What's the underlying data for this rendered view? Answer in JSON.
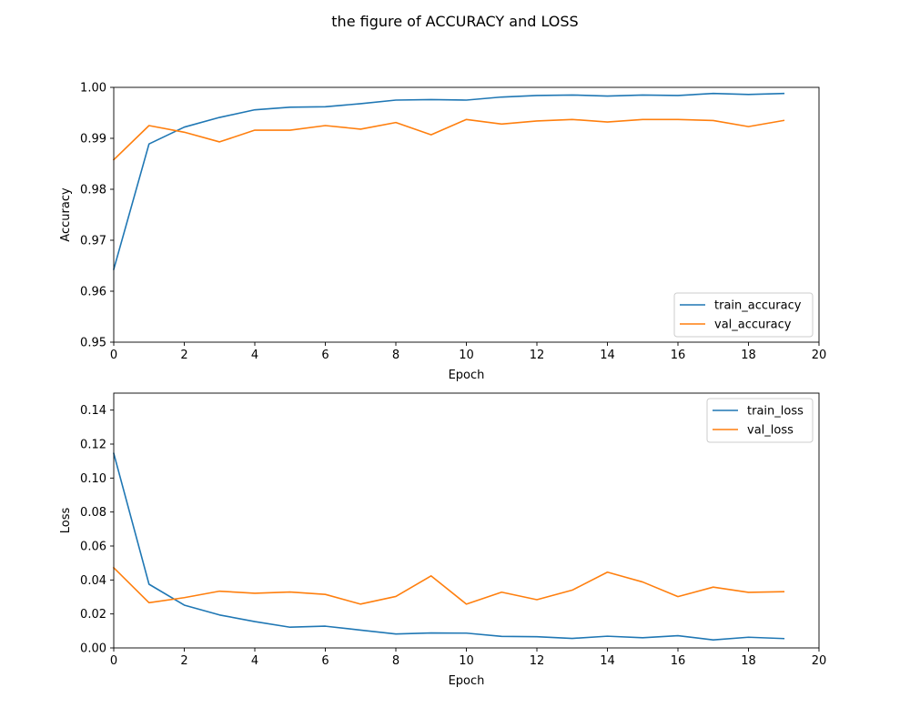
{
  "figure": {
    "title": "the figure of ACCURACY and LOSS"
  },
  "colors": {
    "train": "#1f77b4",
    "val": "#ff7f0e"
  },
  "chart_data": [
    {
      "type": "line",
      "xlabel": "Epoch",
      "ylabel": "Accuracy",
      "xlim": [
        0,
        20
      ],
      "ylim": [
        0.95,
        1.0
      ],
      "xticks": [
        0,
        2,
        4,
        6,
        8,
        10,
        12,
        14,
        16,
        18,
        20
      ],
      "yticks": [
        0.95,
        0.96,
        0.97,
        0.98,
        0.99,
        1.0
      ],
      "ytick_labels": [
        "0.95",
        "0.96",
        "0.97",
        "0.98",
        "0.99",
        "1.00"
      ],
      "grid": false,
      "legend": "lower-right",
      "x": [
        0,
        1,
        2,
        3,
        4,
        5,
        6,
        7,
        8,
        9,
        10,
        11,
        12,
        13,
        14,
        15,
        16,
        17,
        18,
        19
      ],
      "series": [
        {
          "name": "train_accuracy",
          "color": "#1f77b4",
          "values": [
            0.9643,
            0.9889,
            0.9922,
            0.9941,
            0.9956,
            0.9961,
            0.9962,
            0.9968,
            0.9975,
            0.9976,
            0.9975,
            0.9981,
            0.9984,
            0.9985,
            0.9983,
            0.9985,
            0.9984,
            0.9988,
            0.9986,
            0.9988
          ]
        },
        {
          "name": "val_accuracy",
          "color": "#ff7f0e",
          "values": [
            0.9858,
            0.9925,
            0.9912,
            0.9893,
            0.9916,
            0.9916,
            0.9925,
            0.9918,
            0.9931,
            0.9907,
            0.9937,
            0.9928,
            0.9934,
            0.9937,
            0.9932,
            0.9937,
            0.9937,
            0.9935,
            0.9923,
            0.9935
          ]
        }
      ]
    },
    {
      "type": "line",
      "xlabel": "Epoch",
      "ylabel": "Loss",
      "xlim": [
        0,
        20
      ],
      "ylim": [
        0.0,
        0.15
      ],
      "xticks": [
        0,
        2,
        4,
        6,
        8,
        10,
        12,
        14,
        16,
        18,
        20
      ],
      "yticks": [
        0.0,
        0.02,
        0.04,
        0.06,
        0.08,
        0.1,
        0.12,
        0.14
      ],
      "ytick_labels": [
        "0.00",
        "0.02",
        "0.04",
        "0.06",
        "0.08",
        "0.10",
        "0.12",
        "0.14"
      ],
      "grid": false,
      "legend": "upper-right",
      "x": [
        0,
        1,
        2,
        3,
        4,
        5,
        6,
        7,
        8,
        9,
        10,
        11,
        12,
        13,
        14,
        15,
        16,
        17,
        18,
        19
      ],
      "series": [
        {
          "name": "train_loss",
          "color": "#1f77b4",
          "values": [
            0.1145,
            0.0375,
            0.0252,
            0.0194,
            0.0155,
            0.0122,
            0.0128,
            0.0105,
            0.0082,
            0.0088,
            0.0087,
            0.0068,
            0.0066,
            0.0056,
            0.0069,
            0.006,
            0.0072,
            0.0047,
            0.0063,
            0.0055
          ]
        },
        {
          "name": "val_loss",
          "color": "#ff7f0e",
          "values": [
            0.0472,
            0.0266,
            0.0296,
            0.0334,
            0.0322,
            0.0329,
            0.0315,
            0.0258,
            0.0303,
            0.0424,
            0.0258,
            0.0328,
            0.0284,
            0.034,
            0.0446,
            0.0388,
            0.0302,
            0.0358,
            0.0327,
            0.0331
          ]
        }
      ]
    }
  ]
}
